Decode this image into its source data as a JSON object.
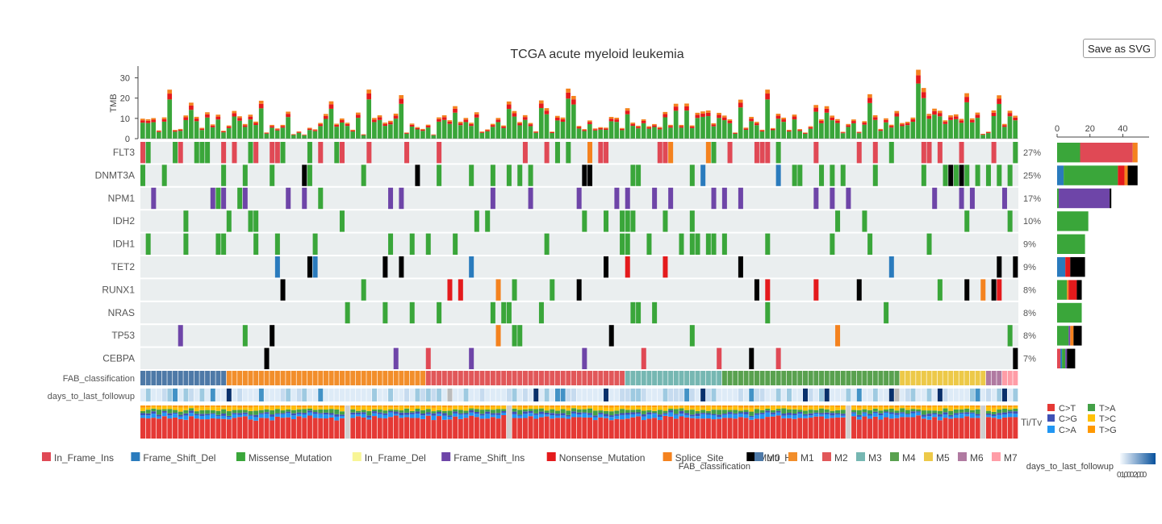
{
  "toolbar": {
    "save_label": "Save as SVG"
  },
  "chart_data": {
    "type": "oncoplot",
    "title": "TCGA acute myeloid leukemia",
    "tmb_axis": {
      "label": "TMB",
      "ticks": [
        0,
        10,
        20,
        30
      ],
      "ylim": [
        0,
        35
      ]
    },
    "side_axis": {
      "ticks": [
        0,
        20,
        40
      ],
      "xlim": [
        0,
        56
      ]
    },
    "genes": [
      {
        "name": "FLT3",
        "pct": "27%",
        "side": {
          "Missense_Mutation": 14,
          "In_Frame_Ins": 32,
          "Splice_Site": 3
        }
      },
      {
        "name": "DNMT3A",
        "pct": "25%",
        "side": {
          "Frame_Shift_Del": 4,
          "Missense_Mutation": 33,
          "Nonsense_Mutation": 4,
          "Splice_Site": 2,
          "Multi_Hit": 6
        }
      },
      {
        "name": "NPM1",
        "pct": "17%",
        "side": {
          "Missense_Mutation": 1,
          "Frame_Shift_Ins": 31,
          "Multi_Hit": 1
        }
      },
      {
        "name": "IDH2",
        "pct": "10%",
        "side": {
          "Missense_Mutation": 19
        }
      },
      {
        "name": "IDH1",
        "pct": "9%",
        "side": {
          "Missense_Mutation": 17
        }
      },
      {
        "name": "TET2",
        "pct": "9%",
        "side": {
          "Frame_Shift_Del": 5,
          "Nonsense_Mutation": 3,
          "Multi_Hit": 9
        }
      },
      {
        "name": "RUNX1",
        "pct": "8%",
        "side": {
          "Missense_Mutation": 6,
          "Splice_Site": 1,
          "Nonsense_Mutation": 5,
          "Multi_Hit": 3
        }
      },
      {
        "name": "NRAS",
        "pct": "8%",
        "side": {
          "Missense_Mutation": 15
        }
      },
      {
        "name": "TP53",
        "pct": "8%",
        "side": {
          "Missense_Mutation": 7,
          "Frame_Shift_Ins": 1,
          "Splice_Site": 2,
          "Multi_Hit": 5
        }
      },
      {
        "name": "CEBPA",
        "pct": "7%",
        "side": {
          "In_Frame_Ins": 2,
          "Frame_Shift_Del": 1,
          "Missense_Mutation": 2,
          "Frame_Shift_Ins": 1,
          "Multi_Hit": 5
        }
      }
    ],
    "variant_classes": [
      {
        "name": "In_Frame_Ins",
        "color": "#e04955"
      },
      {
        "name": "Frame_Shift_Del",
        "color": "#2a7bbd"
      },
      {
        "name": "Missense_Mutation",
        "color": "#3aa63a"
      },
      {
        "name": "In_Frame_Del",
        "color": "#f8f596"
      },
      {
        "name": "Frame_Shift_Ins",
        "color": "#6e45a8"
      },
      {
        "name": "Nonsense_Mutation",
        "color": "#e41a1c"
      },
      {
        "name": "Splice_Site",
        "color": "#f4821e"
      },
      {
        "name": "Multi_Hit",
        "color": "#000000"
      }
    ],
    "annotation_tracks": [
      "FAB_classification",
      "days_to_last_followup"
    ],
    "fab": {
      "legend_label": "FAB_classification",
      "classes": [
        {
          "name": "M0",
          "color": "#4e79a7",
          "count": 16
        },
        {
          "name": "M1",
          "color": "#f28e2b",
          "count": 37
        },
        {
          "name": "M2",
          "color": "#e15759",
          "count": 37
        },
        {
          "name": "M3",
          "color": "#76b7b2",
          "count": 18
        },
        {
          "name": "M4",
          "color": "#59a14f",
          "count": 33
        },
        {
          "name": "M5",
          "color": "#edc948",
          "count": 16
        },
        {
          "name": "M6",
          "color": "#b07aa1",
          "count": 3
        },
        {
          "name": "M7",
          "color": "#ff9da7",
          "count": 3
        }
      ]
    },
    "followup": {
      "legend_label": "days_to_last_followup",
      "tick_labels": "0 1,000 2,000"
    },
    "titv": {
      "label": "Ti/Tv",
      "classes": [
        {
          "name": "C>T",
          "color": "#e53935"
        },
        {
          "name": "T>A",
          "color": "#43a047"
        },
        {
          "name": "C>G",
          "color": "#3f51b5"
        },
        {
          "name": "T>C",
          "color": "#ffc107"
        },
        {
          "name": "C>A",
          "color": "#2196f3"
        },
        {
          "name": "T>G",
          "color": "#ff9800"
        }
      ]
    },
    "n_samples": 163,
    "grid": false
  }
}
